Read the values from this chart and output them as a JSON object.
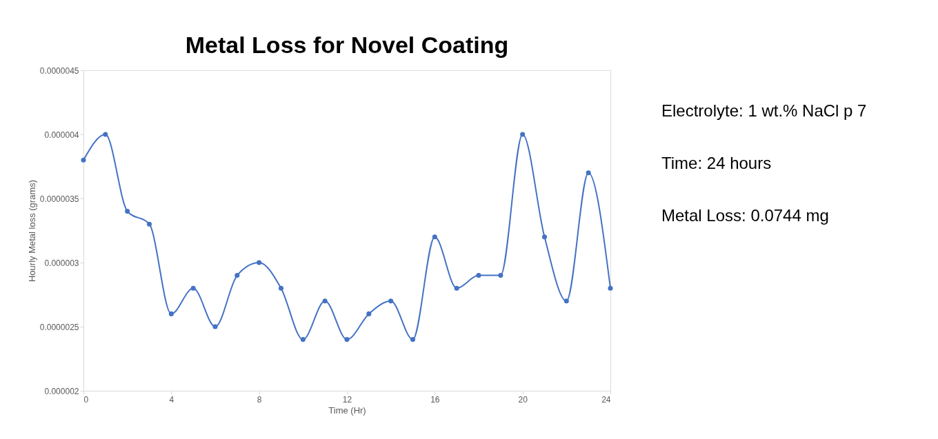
{
  "chart_data": {
    "type": "line",
    "title": "Metal Loss for Novel Coating",
    "xlabel": "Time (Hr)",
    "ylabel": "Hourly Metal loss (grams)",
    "x": [
      0,
      1,
      2,
      3,
      4,
      5,
      6,
      7,
      8,
      9,
      10,
      11,
      12,
      13,
      14,
      15,
      16,
      17,
      18,
      19,
      20,
      21,
      22,
      23,
      24
    ],
    "series": [
      {
        "color": "#4472c4",
        "values": [
          3.8e-06,
          4e-06,
          3.4e-06,
          3.3e-06,
          2.6e-06,
          2.8e-06,
          2.5e-06,
          2.9e-06,
          3e-06,
          2.8e-06,
          2.4e-06,
          2.7e-06,
          2.4e-06,
          2.6e-06,
          2.7e-06,
          2.4e-06,
          3.2e-06,
          2.8e-06,
          2.9e-06,
          2.9e-06,
          4e-06,
          3.2e-06,
          2.7e-06,
          3.7e-06,
          2.8e-06
        ]
      }
    ],
    "xlim": [
      0,
      24
    ],
    "xticks": [
      0,
      4,
      8,
      12,
      16,
      20,
      24
    ],
    "ylim": [
      2e-06,
      4.5e-06
    ],
    "yticks": [
      {
        "value": 2e-06,
        "label": "0.000002"
      },
      {
        "value": 2.5e-06,
        "label": "0.0000025"
      },
      {
        "value": 3e-06,
        "label": "0.000003"
      },
      {
        "value": 3.5e-06,
        "label": "0.0000035"
      },
      {
        "value": 4e-06,
        "label": "0.000004"
      },
      {
        "value": 4.5e-06,
        "label": "0.0000045"
      }
    ],
    "annotations": [
      "Electrolyte: 1 wt.% NaCl p 7",
      "Time: 24 hours",
      "Metal Loss: 0.0744 mg"
    ],
    "grid": false,
    "marker": "circle",
    "line_style": "solid"
  }
}
